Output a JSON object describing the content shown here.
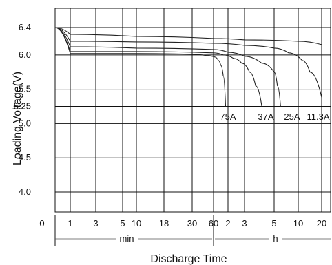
{
  "chart_data": {
    "type": "line",
    "title": "",
    "xlabel": "Discharge Time",
    "ylabel": "Loading Voltage(V)",
    "ylim": [
      3.7,
      6.5
    ],
    "y_ticks": [
      "6.4",
      "6.0",
      "5.5",
      "5.25",
      "5.0",
      "4.5",
      "4.0"
    ],
    "y_tick_values": [
      6.4,
      6.0,
      5.5,
      5.25,
      5.0,
      4.5,
      4.0
    ],
    "x_ticks": [
      "0",
      "1",
      "3",
      "5",
      "10",
      "18",
      "30",
      "60",
      "2",
      "3",
      "5",
      "10",
      "20"
    ],
    "x_units": {
      "min_label": "min",
      "hour_label": "h"
    },
    "grid": true,
    "series": [
      {
        "name": "75A",
        "x_min": [
          0,
          1,
          10,
          30,
          50,
          65,
          80,
          90,
          100,
          110
        ],
        "y": [
          6.4,
          6.02,
          6.02,
          6.01,
          5.99,
          5.97,
          5.92,
          5.85,
          5.7,
          5.25
        ]
      },
      {
        "name": "37A",
        "x_min": [
          0,
          1,
          10,
          60,
          100,
          140,
          170,
          200,
          225,
          250
        ],
        "y": [
          6.4,
          6.05,
          6.05,
          6.03,
          6.0,
          5.95,
          5.88,
          5.75,
          5.55,
          5.25
        ]
      },
      {
        "name": "25A",
        "x_min": [
          0,
          1,
          10,
          60,
          120,
          180,
          250,
          300,
          340,
          380
        ],
        "y": [
          6.4,
          6.12,
          6.1,
          6.08,
          6.04,
          5.98,
          5.88,
          5.75,
          5.55,
          5.25
        ]
      },
      {
        "name": "11.3A",
        "x_min": [
          0,
          1,
          10,
          60,
          180,
          300,
          480,
          700,
          900,
          1200
        ],
        "y": [
          6.4,
          6.2,
          6.19,
          6.17,
          6.14,
          6.1,
          6.03,
          5.92,
          5.75,
          5.38
        ]
      },
      {
        "name": "",
        "x_min": [
          0,
          1,
          10,
          60,
          180,
          600,
          1200
        ],
        "y": [
          6.4,
          6.3,
          6.27,
          6.24,
          6.22,
          6.2,
          6.15
        ]
      }
    ]
  }
}
